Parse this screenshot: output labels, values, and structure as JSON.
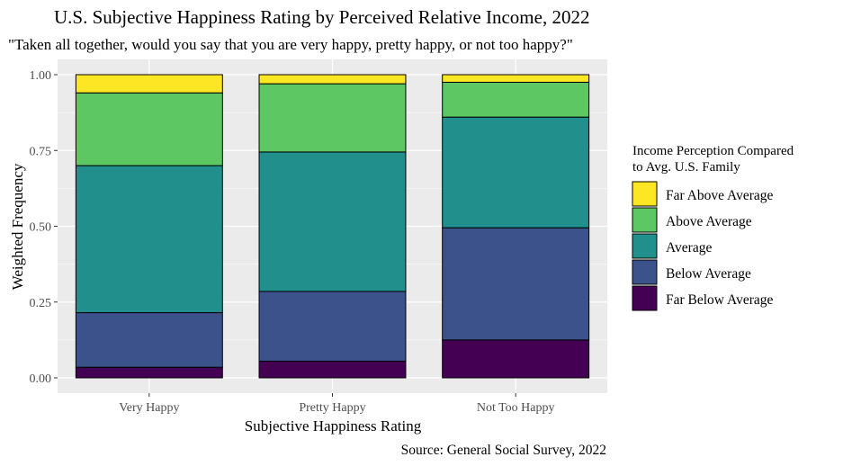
{
  "chart_data": {
    "type": "bar",
    "stacked": true,
    "title": "U.S. Subjective Happiness Rating by Perceived Relative Income, 2022",
    "subtitle": "\"Taken all together, would you say that you are very happy, pretty happy, or not too happy?\"",
    "xlabel": "Subjective Happiness Rating",
    "ylabel": "Weighted Frequency",
    "caption": "Source: General Social Survey, 2022",
    "categories": [
      "Very Happy",
      "Pretty Happy",
      "Not Too Happy"
    ],
    "ylim": [
      0,
      1
    ],
    "yticks": [
      0,
      0.25,
      0.5,
      0.75,
      1
    ],
    "ytick_labels": [
      "0.00",
      "0.25",
      "0.50",
      "0.75",
      "1.00"
    ],
    "grid": true,
    "legend": {
      "title_lines": [
        "Income Perception Compared",
        "to Avg. U.S. Family"
      ],
      "placement": "right",
      "entries": [
        "Far Above Average",
        "Above Average",
        "Average",
        "Below Average",
        "Far Below Average"
      ]
    },
    "series": [
      {
        "name": "Far Below Average",
        "color": "#440154",
        "values": [
          0.035,
          0.055,
          0.125
        ]
      },
      {
        "name": "Below Average",
        "color": "#3b528b",
        "values": [
          0.18,
          0.23,
          0.37
        ]
      },
      {
        "name": "Average",
        "color": "#21908c",
        "values": [
          0.485,
          0.46,
          0.365
        ]
      },
      {
        "name": "Above Average",
        "color": "#5dc863",
        "values": [
          0.24,
          0.225,
          0.115
        ]
      },
      {
        "name": "Far Above Average",
        "color": "#fde725",
        "values": [
          0.06,
          0.03,
          0.025
        ]
      }
    ]
  }
}
